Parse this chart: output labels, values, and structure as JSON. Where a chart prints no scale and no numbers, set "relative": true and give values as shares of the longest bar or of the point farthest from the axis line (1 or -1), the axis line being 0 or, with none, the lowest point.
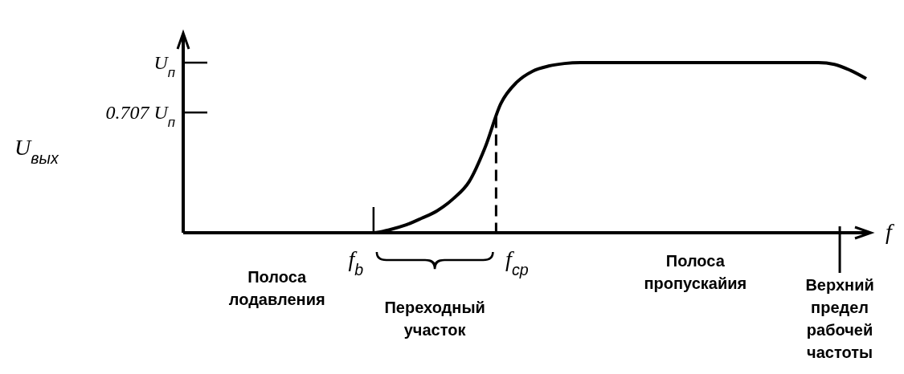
{
  "chart_data": {
    "type": "line",
    "relative": true,
    "xlabel": "f",
    "categories": [
      null,
      null,
      null,
      null,
      null,
      null,
      null,
      null,
      null,
      null,
      null,
      null,
      null,
      null,
      null,
      null,
      null,
      null,
      null,
      null,
      null,
      null,
      null,
      null,
      null,
      null,
      null,
      null,
      null,
      null,
      null,
      null,
      null,
      null,
      null,
      null,
      null,
      null,
      null,
      null,
      null,
      null,
      null,
      null
    ],
    "series": [
      {
        "color": "#000000",
        "values": [
          0,
          0,
          0,
          0,
          0,
          0,
          0,
          0,
          0,
          0,
          0,
          0,
          0,
          0.018,
          0.045,
          0.085,
          0.13,
          0.2,
          0.3,
          0.5,
          0.76,
          0.885,
          0.95,
          0.98,
          0.995,
          1,
          1,
          1,
          1,
          1,
          1,
          1,
          1,
          1,
          1,
          1,
          1,
          1,
          1,
          1,
          1,
          0.99,
          0.955,
          0.906
        ]
      }
    ],
    "annotations": [
      "f$_{b}$",
      "f$_{ср}$",
      "Полоса лодавления",
      "Переходный участок",
      "Полоса пропускайия",
      "Верхний предел рабочей частоты",
      "U$_{п}$",
      "0.707 U$_{п}$",
      "U$_{вых}$"
    ],
    "line_style": "solid"
  }
}
